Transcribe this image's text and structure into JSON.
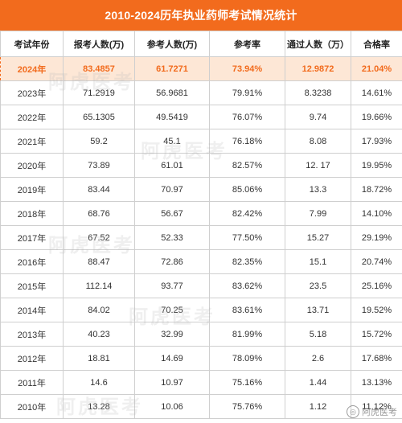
{
  "title": "2010-2024历年执业药师考试情况统计",
  "headers": [
    "考试年份",
    "报考人数(万)",
    "参考人数(万)",
    "参考率",
    "通过人数（万）",
    "合格率"
  ],
  "rows": [
    [
      "2024年",
      "83.4857",
      "61.7271",
      "73.94%",
      "12.9872",
      "21.04%"
    ],
    [
      "2023年",
      "71.2919",
      "56.9681",
      "79.91%",
      "8.3238",
      "14.61%"
    ],
    [
      "2022年",
      "65.1305",
      "49.5419",
      "76.07%",
      "9.74",
      "19.66%"
    ],
    [
      "2021年",
      "59.2",
      "45.1",
      "76.18%",
      "8.08",
      "17.93%"
    ],
    [
      "2020年",
      "73.89",
      "61.01",
      "82.57%",
      "12. 17",
      "19.95%"
    ],
    [
      "2019年",
      "83.44",
      "70.97",
      "85.06%",
      "13.3",
      "18.72%"
    ],
    [
      "2018年",
      "68.76",
      "56.67",
      "82.42%",
      "7.99",
      "14.10%"
    ],
    [
      "2017年",
      "67.52",
      "52.33",
      "77.50%",
      "15.27",
      "29.19%"
    ],
    [
      "2016年",
      "88.47",
      "72.86",
      "82.35%",
      "15.1",
      "20.74%"
    ],
    [
      "2015年",
      "112.14",
      "93.77",
      "83.62%",
      "23.5",
      "25.16%"
    ],
    [
      "2014年",
      "84.02",
      "70.25",
      "83.61%",
      "13.71",
      "19.52%"
    ],
    [
      "2013年",
      "40.23",
      "32.99",
      "81.99%",
      "5.18",
      "15.72%"
    ],
    [
      "2012年",
      "18.81",
      "14.69",
      "78.09%",
      "2.6",
      "17.68%"
    ],
    [
      "2011年",
      "14.6",
      "10.97",
      "75.16%",
      "1.44",
      "13.13%"
    ],
    [
      "2010年",
      "13.28",
      "10.06",
      "75.76%",
      "1.12",
      "11.12%"
    ]
  ],
  "watermark_text": "阿虎医考",
  "corner_watermark": "阿虎医考",
  "colors": {
    "accent": "#f26b1d",
    "highlight_bg": "#fde7d6"
  }
}
